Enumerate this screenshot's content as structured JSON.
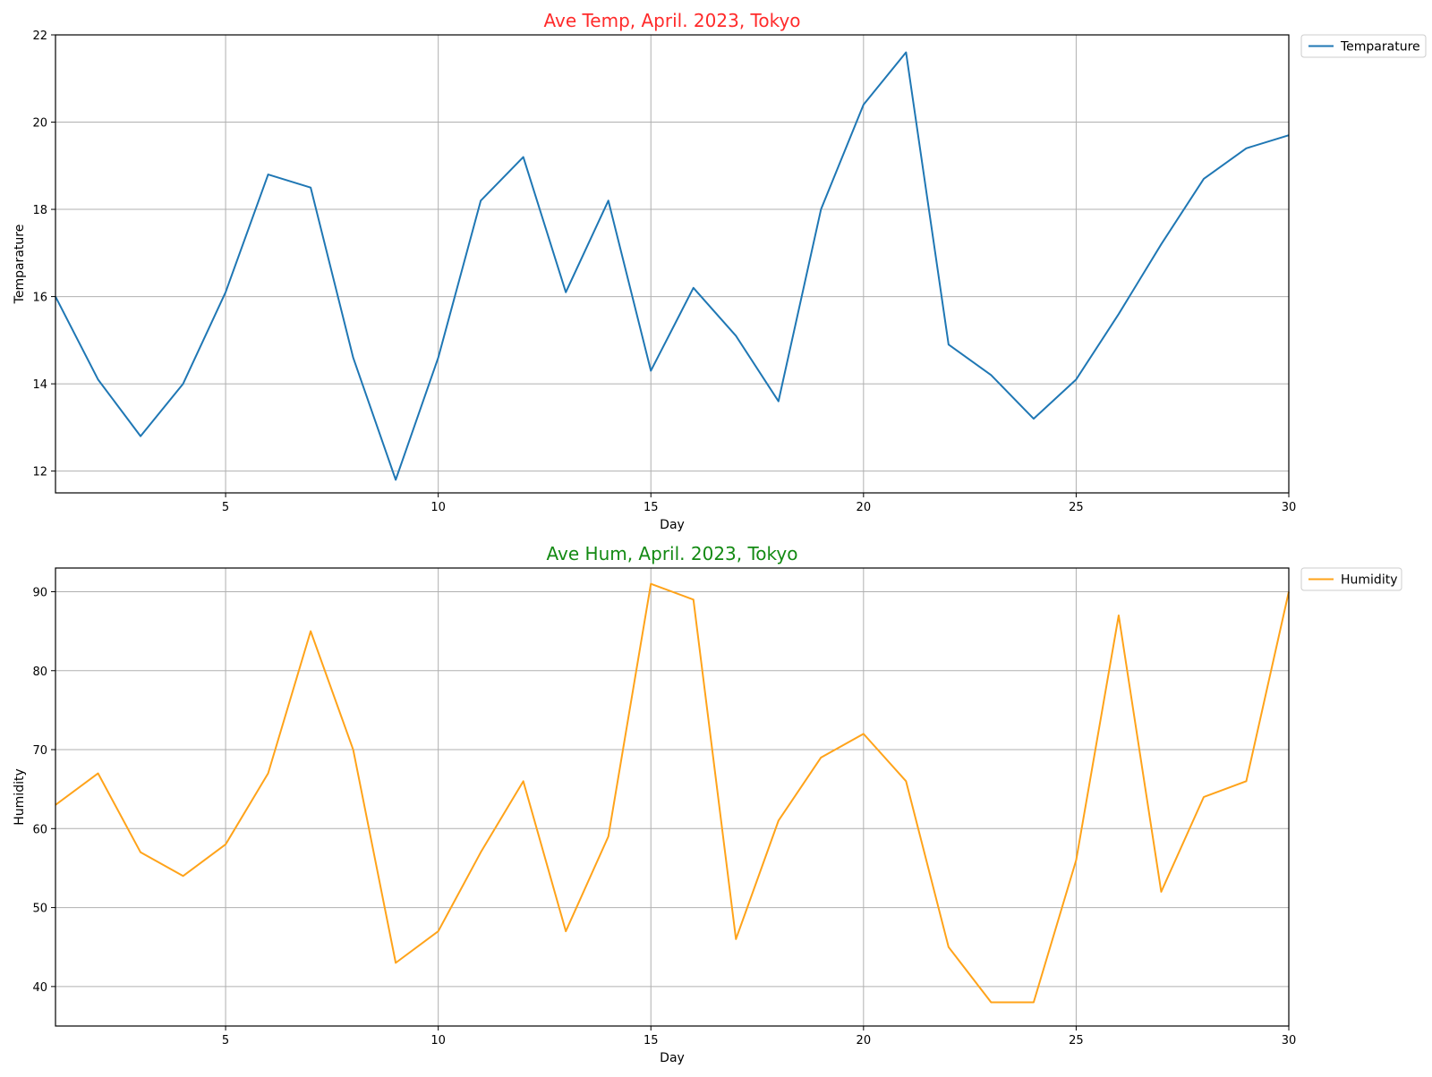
{
  "chart_data": [
    {
      "type": "line",
      "title": "Ave Temp, April. 2023, Tokyo",
      "title_color": "#ff2a2a",
      "xlabel": "Day",
      "ylabel": "Temparature",
      "xlim": [
        1,
        30
      ],
      "ylim": [
        11.5,
        22
      ],
      "xticks": [
        5,
        10,
        15,
        20,
        25,
        30
      ],
      "yticks": [
        12,
        14,
        16,
        18,
        20,
        22
      ],
      "grid": true,
      "legend_position": "outside-top-right",
      "x": [
        1,
        2,
        3,
        4,
        5,
        6,
        7,
        8,
        9,
        10,
        11,
        12,
        13,
        14,
        15,
        16,
        17,
        18,
        19,
        20,
        21,
        22,
        23,
        24,
        25,
        26,
        27,
        28,
        29,
        30
      ],
      "series": [
        {
          "name": "Temparature",
          "color": "#1f77b4",
          "values": [
            16.0,
            14.1,
            12.8,
            14.0,
            16.1,
            18.8,
            18.5,
            14.6,
            11.8,
            14.6,
            18.2,
            19.2,
            16.1,
            18.2,
            14.3,
            16.2,
            15.1,
            13.6,
            18.0,
            20.4,
            21.6,
            14.9,
            14.2,
            13.2,
            14.1,
            15.6,
            17.2,
            18.7,
            19.4,
            19.7
          ]
        }
      ]
    },
    {
      "type": "line",
      "title": "Ave Hum, April. 2023, Tokyo",
      "title_color": "#138a13",
      "xlabel": "Day",
      "ylabel": "Humidity",
      "xlim": [
        1,
        30
      ],
      "ylim": [
        35,
        93
      ],
      "xticks": [
        5,
        10,
        15,
        20,
        25,
        30
      ],
      "yticks": [
        40,
        50,
        60,
        70,
        80,
        90
      ],
      "grid": true,
      "legend_position": "outside-top-right",
      "x": [
        1,
        2,
        3,
        4,
        5,
        6,
        7,
        8,
        9,
        10,
        11,
        12,
        13,
        14,
        15,
        16,
        17,
        18,
        19,
        20,
        21,
        22,
        23,
        24,
        25,
        26,
        27,
        28,
        29,
        30
      ],
      "series": [
        {
          "name": "Humidity",
          "color": "#ffa31a",
          "values": [
            63,
            67,
            57,
            54,
            58,
            67,
            85,
            70,
            43,
            47,
            57,
            66,
            47,
            59,
            91,
            89,
            46,
            61,
            69,
            72,
            66,
            45,
            38,
            38,
            56,
            87,
            52,
            64,
            66,
            90
          ]
        }
      ]
    }
  ]
}
